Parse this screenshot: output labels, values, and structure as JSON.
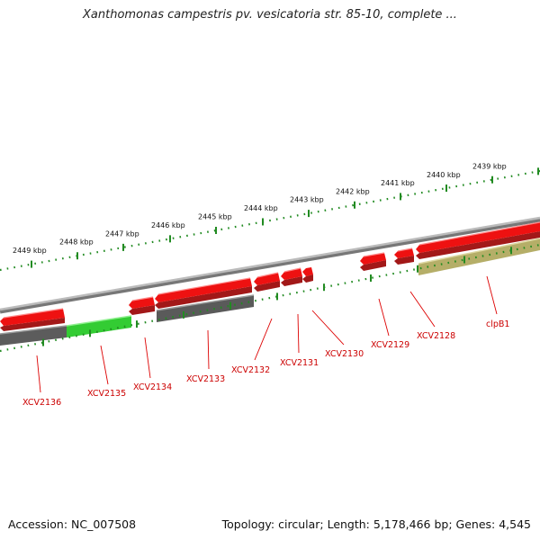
{
  "title": "Xanthomonas campestris pv. vesicatoria str. 85-10, complete ...",
  "footer": {
    "accession": "Accession: NC_007508",
    "stats": "Topology: circular; Length: 5,178,466 bp; Genes: 4,545"
  },
  "colors": {
    "background": "#ffffff",
    "backbone": "#888888",
    "scale_ticks": "#228b22",
    "gene_red": "#e60000",
    "gene_dark_gray": "#555555",
    "gene_green": "#33cc33",
    "gene_olive": "#b7b06a",
    "label_red": "#cc0000"
  },
  "scale_labels": [
    "2449 kbp",
    "2448 kbp",
    "2447 kbp",
    "2446 kbp",
    "2445 kbp",
    "2444 kbp",
    "2443 kbp",
    "2442 kbp",
    "2441 kbp",
    "2440 kbp",
    "2439 kbp"
  ],
  "gene_labels": [
    "XCV2136",
    "XCV2135",
    "XCV2134",
    "XCV2133",
    "XCV2132",
    "XCV2131",
    "XCV2130",
    "XCV2129",
    "XCV2128",
    "clpB1"
  ]
}
